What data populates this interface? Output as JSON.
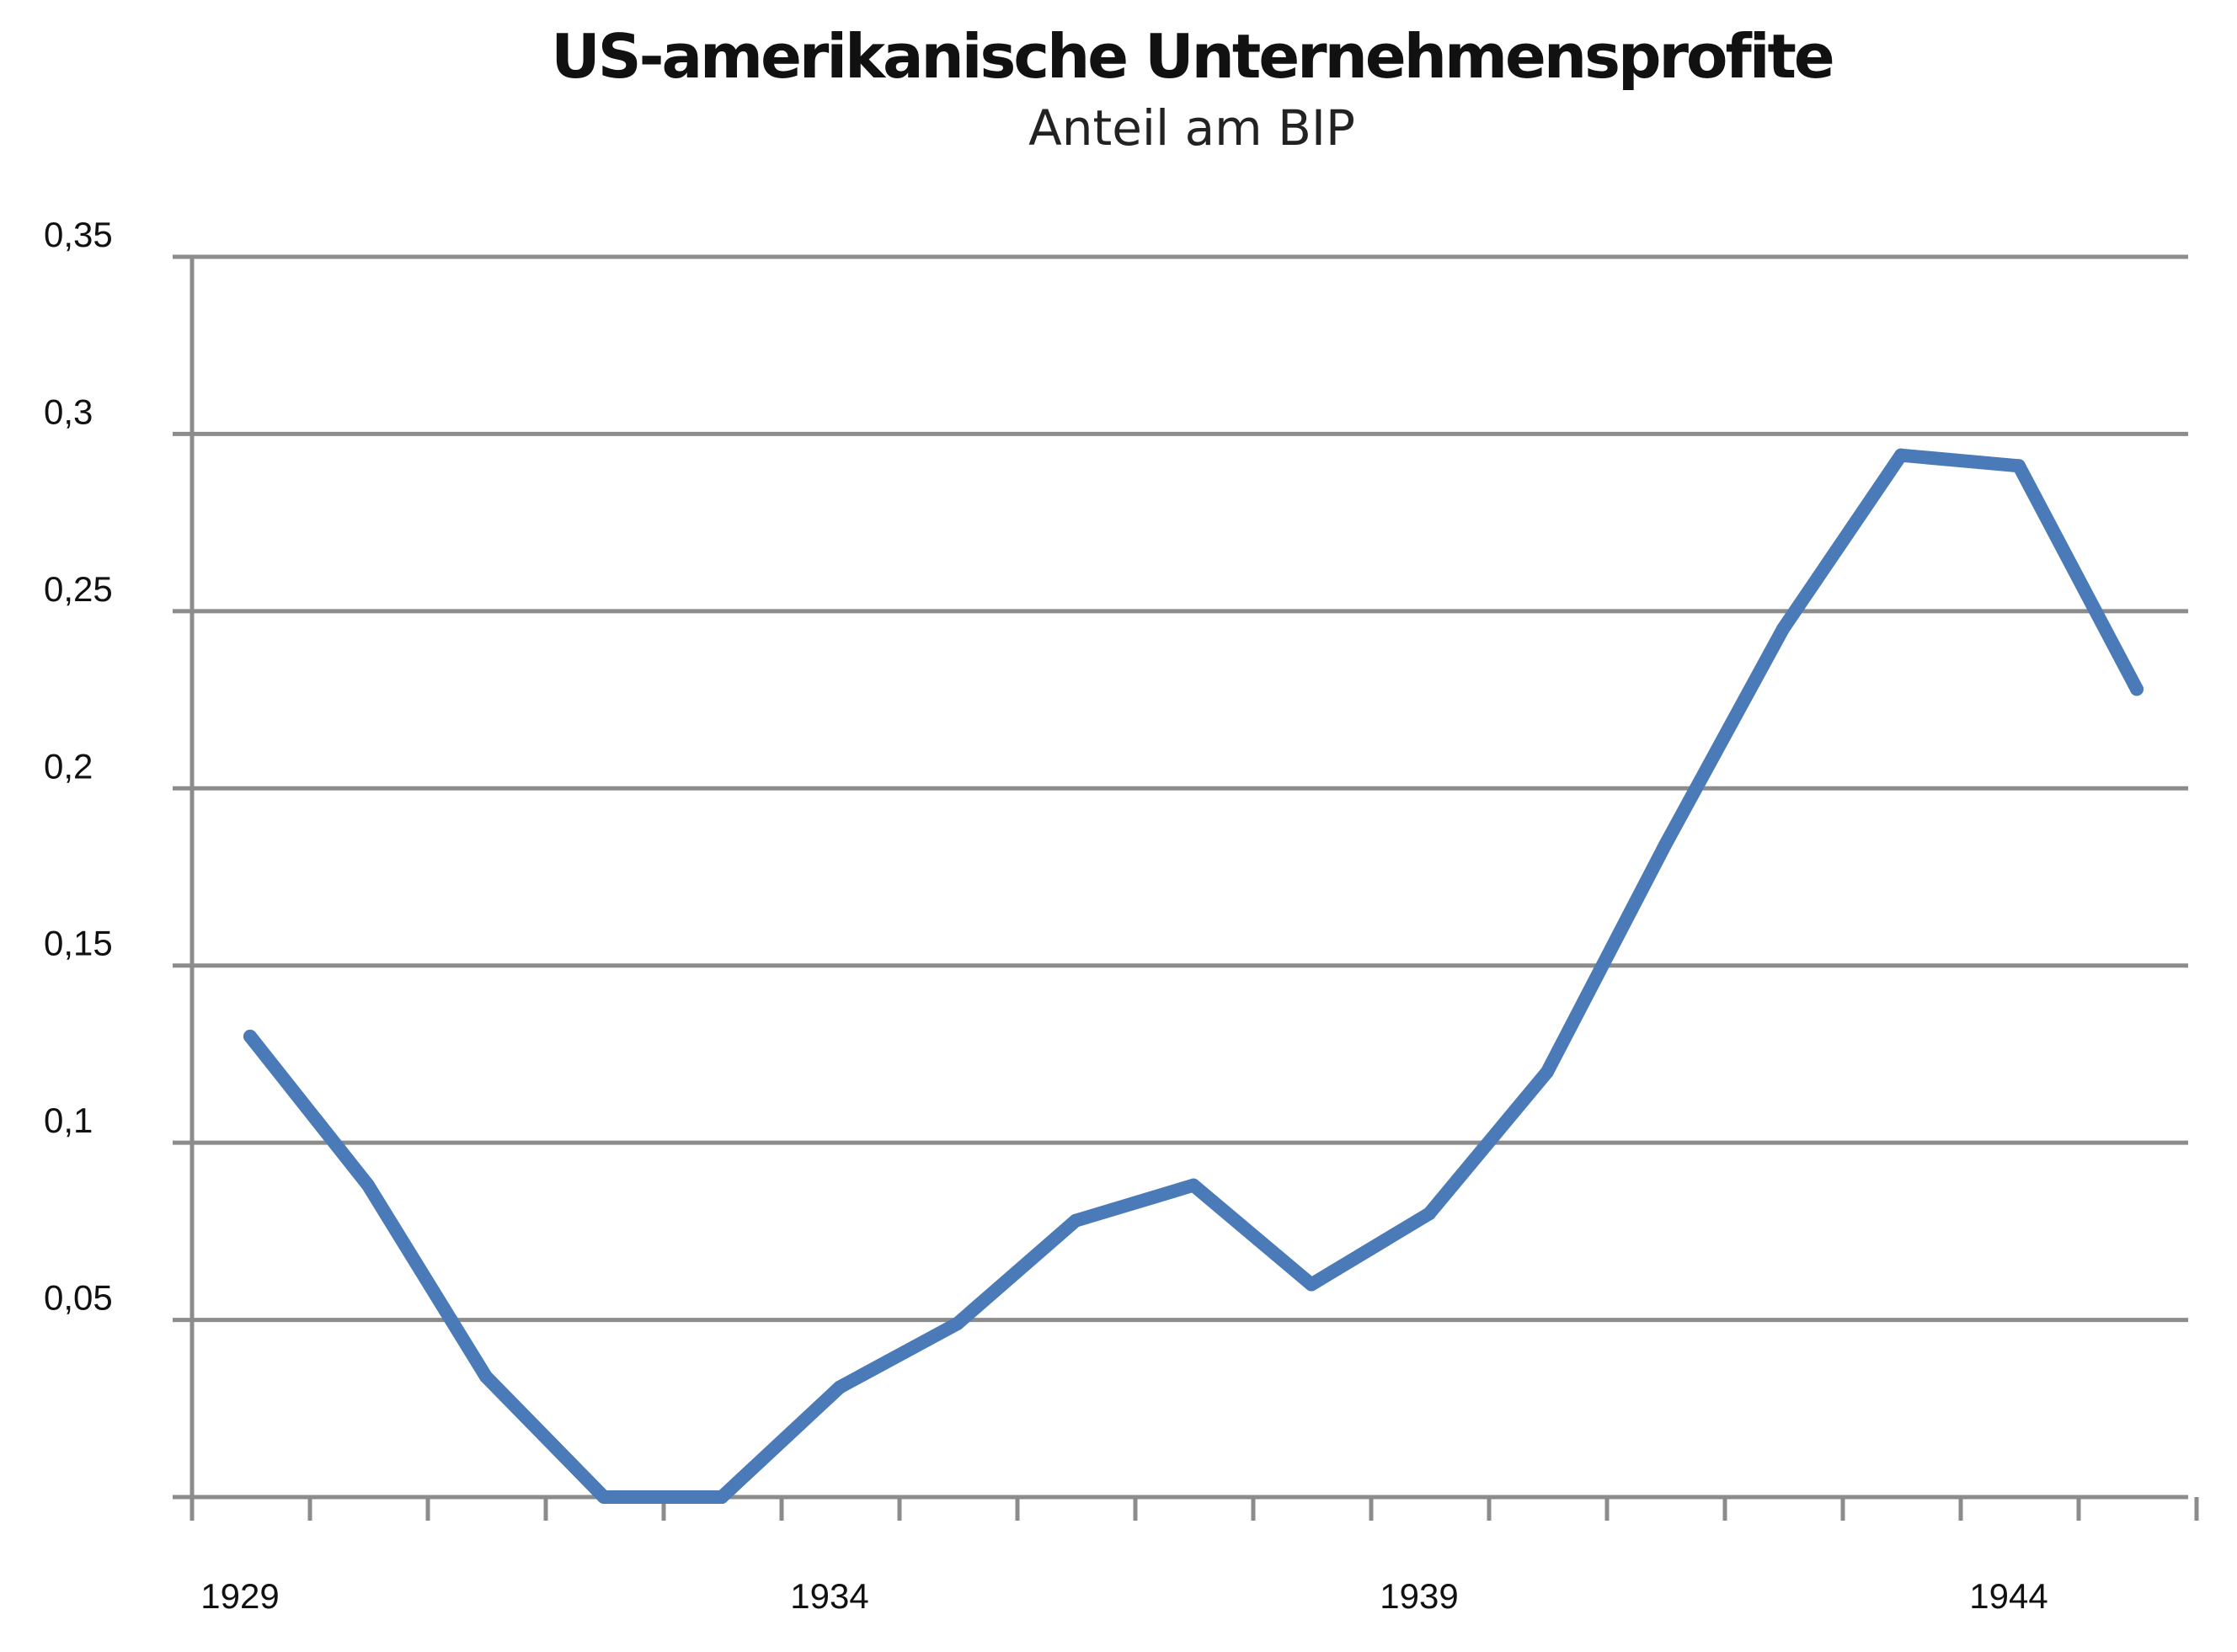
{
  "chart_data": {
    "type": "line",
    "title": "US-amerikanische Unternehmensprofite",
    "subtitle": "Anteil am BIP",
    "xlabel": "",
    "ylabel": "",
    "x": [
      1929,
      1930,
      1931,
      1932,
      1933,
      1934,
      1935,
      1936,
      1937,
      1938,
      1939,
      1940,
      1941,
      1942,
      1943,
      1944,
      1945
    ],
    "series": [
      {
        "values": [
          0.13,
          0.088,
          0.034,
          0.0,
          0.0,
          0.031,
          0.049,
          0.078,
          0.088,
          0.06,
          0.08,
          0.12,
          0.184,
          0.245,
          0.294,
          0.291,
          0.228
        ]
      }
    ],
    "ylim": [
      0,
      0.35
    ],
    "yticks": [
      0.05,
      0.1,
      0.15,
      0.2,
      0.25,
      0.3,
      0.35
    ],
    "ytick_labels": [
      "0,05",
      "0,1",
      "0,15",
      "0,2",
      "0,25",
      "0,3",
      "0,35"
    ],
    "xtick_labels": [
      "1929",
      "1934",
      "1939",
      "1944"
    ],
    "xtick_years": [
      1929,
      1934,
      1939,
      1944
    ],
    "grid": true,
    "legend": "none",
    "colors": {
      "line": "#4a7ab8",
      "grid": "#8c8c8c",
      "axis": "#8c8c8c",
      "text": "#111111"
    }
  }
}
